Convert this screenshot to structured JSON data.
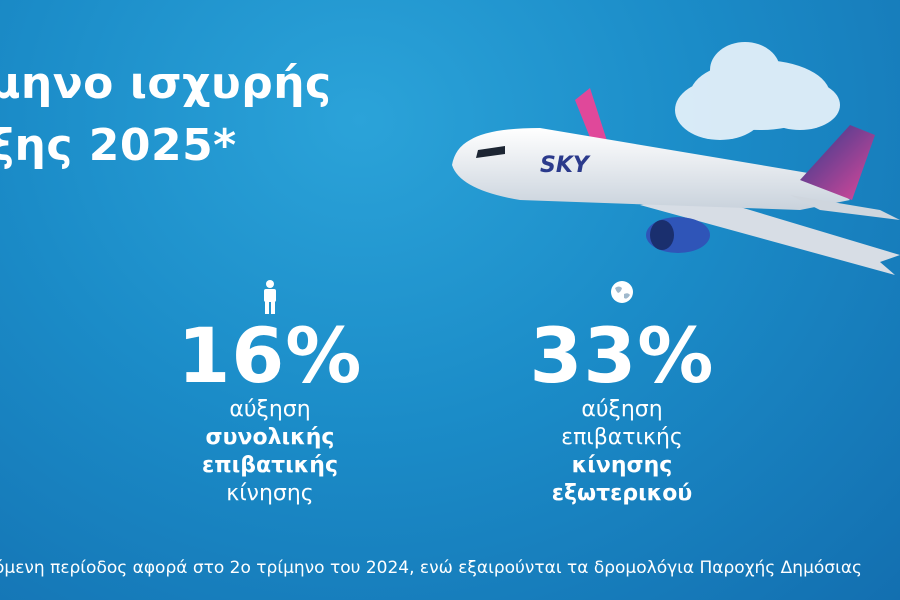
{
  "headline": [
    "μηνο ισχυρής",
    "ξης 2025*"
  ],
  "stats": [
    {
      "value": "16%",
      "icon": "person",
      "lines": [
        {
          "text": "αύξηση",
          "bold": false
        },
        {
          "text": "συνολικής",
          "bold": true
        },
        {
          "text": "επιβατικής",
          "bold": true
        },
        {
          "text": "κίνησης",
          "bold": false
        }
      ]
    },
    {
      "value": "33%",
      "icon": "globe",
      "lines": [
        {
          "text": "αύξηση",
          "bold": false
        },
        {
          "text": "επιβατικής",
          "bold": false
        },
        {
          "text": "κίνησης",
          "bold": true
        },
        {
          "text": "εξωτερικού",
          "bold": true
        }
      ]
    }
  ],
  "footnote": "όμενη περίοδος αφορά στο 2ο τρίμηνο του 2024, ενώ εξαιρούνται τα δρομολόγια Παροχής Δημόσιας"
}
